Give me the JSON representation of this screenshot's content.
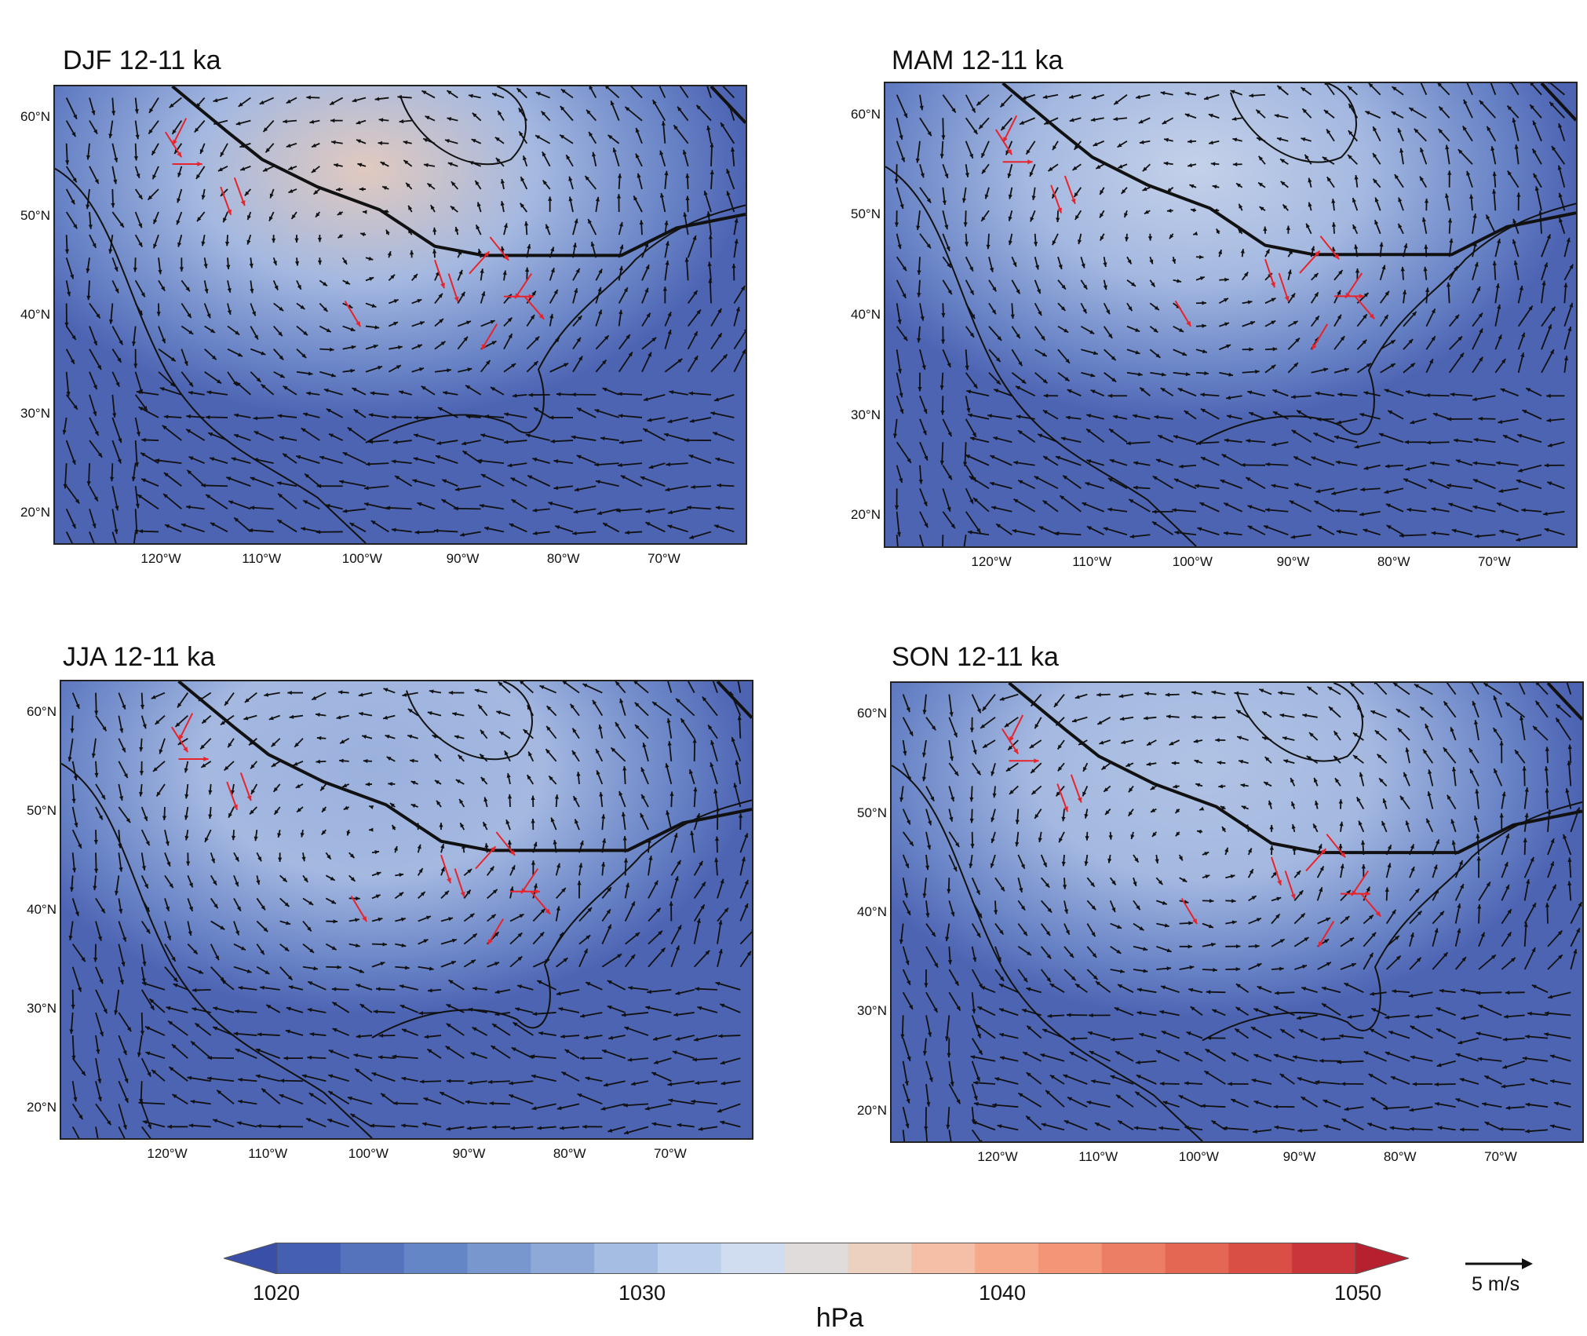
{
  "panels": [
    {
      "title": "DJF 12-11 ka",
      "season": "DJF",
      "high_center_shade": 0.78
    },
    {
      "title": "MAM 12-11 ka",
      "season": "MAM",
      "high_center_shade": 0.62
    },
    {
      "title": "JJA 12-11 ka",
      "season": "JJA",
      "high_center_shade": 0.38
    },
    {
      "title": "SON 12-11 ka",
      "season": "SON",
      "high_center_shade": 0.52
    }
  ],
  "axes": {
    "lat_labels": [
      "60°N",
      "50°N",
      "40°N",
      "30°N",
      "20°N"
    ],
    "lon_labels": [
      "120°W",
      "110°W",
      "100°W",
      "90°W",
      "80°W",
      "70°W"
    ]
  },
  "colorbar": {
    "units": "hPa",
    "min": 1020,
    "max": 1050,
    "ticks": [
      "1020",
      "1030",
      "1040",
      "1050"
    ],
    "colors": [
      "#3a4fa8",
      "#4560b2",
      "#5473bc",
      "#6485c6",
      "#7897cf",
      "#8ea9d8",
      "#a5bde2",
      "#bccfec",
      "#d0dcef",
      "#dfdcdb",
      "#ecd0c0",
      "#f4bfa6",
      "#f5ab8b",
      "#f39676",
      "#ec7f63",
      "#e46753",
      "#d94f45",
      "#c93539",
      "#b7212f"
    ]
  },
  "reference_vector": {
    "label": "5 m/s"
  },
  "colors": {
    "wind_vector": "#111111",
    "proxy_vector": "#e8232a",
    "ice_sheet_margin": "#111111"
  }
}
